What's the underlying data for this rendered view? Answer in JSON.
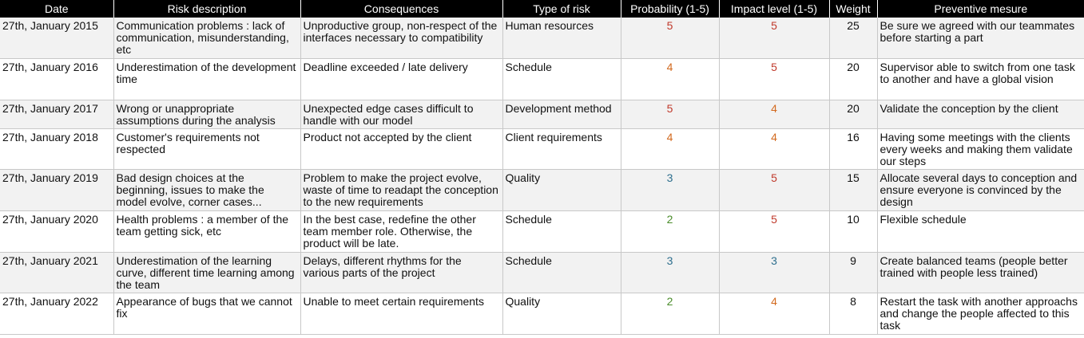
{
  "headers": {
    "date": "Date",
    "risk": "Risk description",
    "consequences": "Consequences",
    "type": "Type of risk",
    "probability": "Probability (1-5)",
    "impact": "Impact level (1-5)",
    "weight": "Weight",
    "preventive": "Preventive mesure"
  },
  "level_colors": {
    "5": "#c0392b",
    "4": "#d2691e",
    "3": "#2e6f8e",
    "2": "#4a8c2a"
  },
  "rows": [
    {
      "date": "27th, January 2015",
      "risk": "Communication problems : lack of communication, misunderstanding, etc",
      "consequences": "Unproductive group, non-respect of the interfaces necessary to compatibility",
      "type": "Human resources",
      "probability": "5",
      "impact": "5",
      "weight": "25",
      "preventive": "Be sure we agreed with our teammates before starting a part"
    },
    {
      "date": "27th, January 2016",
      "risk": "Underestimation of the development time",
      "consequences": "Deadline exceeded / late delivery",
      "type": "Schedule",
      "probability": "4",
      "impact": "5",
      "weight": "20",
      "preventive": "Supervisor able to switch from one task to another and have a global vision"
    },
    {
      "date": "27th, January 2017",
      "risk": "Wrong or unappropriate assumptions during the analysis",
      "consequences": "Unexpected edge cases difficult to handle with our model",
      "type": "Development method",
      "probability": "5",
      "impact": "4",
      "weight": "20",
      "preventive": "Validate the conception by the client"
    },
    {
      "date": "27th, January 2018",
      "risk": "Customer's requirements not respected",
      "consequences": "Product not accepted by the client",
      "type": "Client requirements",
      "probability": "4",
      "impact": "4",
      "weight": "16",
      "preventive": "Having some meetings with the clients every weeks and making them validate our steps"
    },
    {
      "date": "27th, January 2019",
      "risk": "Bad design choices at the beginning, issues to make the model evolve, corner cases...",
      "consequences": "Problem to make the project evolve, waste of time to readapt the conception to the new requirements",
      "type": "Quality",
      "probability": "3",
      "impact": "5",
      "weight": "15",
      "preventive": "Allocate several days to conception and ensure everyone is convinced by the design"
    },
    {
      "date": "27th, January 2020",
      "risk": "Health problems : a member of the team getting sick, etc",
      "consequences": "In the best case, redefine the other team member role. Otherwise, the product will be late.",
      "type": "Schedule",
      "probability": "2",
      "impact": "5",
      "weight": "10",
      "preventive": "Flexible schedule"
    },
    {
      "date": "27th, January 2021",
      "risk": "Underestimation of the learning curve, different time learning among the team",
      "consequences": "Delays, different rhythms for the various parts of the project",
      "type": "Schedule",
      "probability": "3",
      "impact": "3",
      "weight": "9",
      "preventive": "Create balanced teams (people better trained with people less trained)"
    },
    {
      "date": "27th, January 2022",
      "risk": "Appearance of bugs that we cannot fix",
      "consequences": "Unable to meet certain requirements",
      "type": "Quality",
      "probability": "2",
      "impact": "4",
      "weight": "8",
      "preventive": "Restart the task with another approachs and change the people affected to this task"
    }
  ]
}
